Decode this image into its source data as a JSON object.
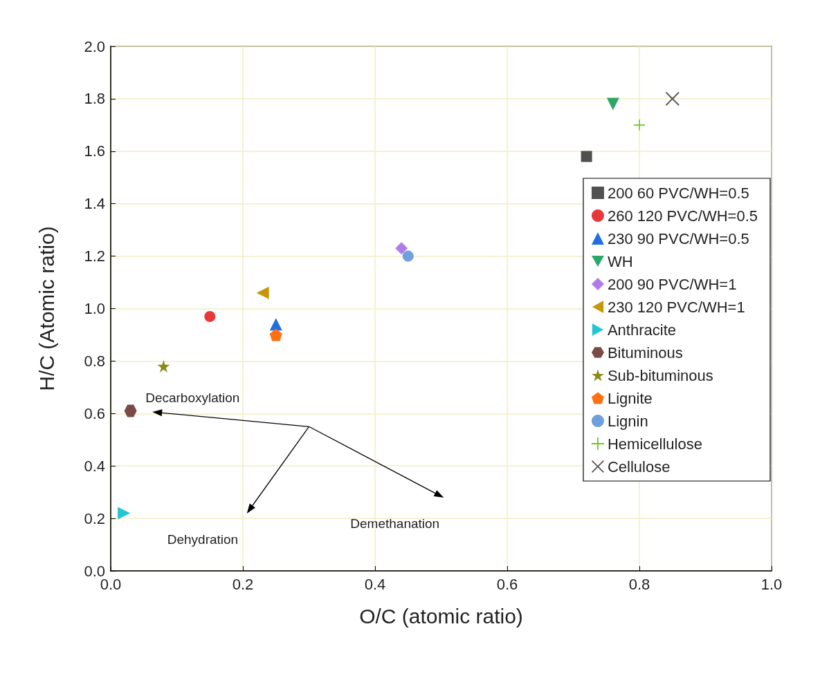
{
  "chart_data": {
    "type": "scatter",
    "xlabel": "O/C (atomic ratio)",
    "ylabel": "H/C (Atomic ratio)",
    "xlim": [
      0,
      1.0
    ],
    "xticks": [
      {
        "value": 0,
        "label": "0.0"
      },
      0.2,
      0.4,
      0.6,
      0.8,
      {
        "value": 1,
        "label": "1.0"
      }
    ],
    "ylim": [
      0,
      2.0
    ],
    "yticks": [
      {
        "value": 0,
        "label": "0.0"
      },
      0.2,
      0.4,
      0.6,
      0.8,
      {
        "value": 1,
        "label": "1.0"
      },
      1.2,
      1.4,
      1.6,
      1.8,
      {
        "value": 2,
        "label": "2.0"
      }
    ],
    "grid": true,
    "legend": "right",
    "series": [
      {
        "name": "200 60 PVC/WH=0.5",
        "color": "#505050",
        "marker": "square",
        "x": [
          0.72
        ],
        "values": [
          1.58
        ]
      },
      {
        "name": "260 120 PVC/WH=0.5",
        "color": "#e8393a",
        "marker": "circle",
        "x": [
          0.15
        ],
        "values": [
          0.97
        ]
      },
      {
        "name": "230 90 PVC/WH=0.5",
        "color": "#1f6fe0",
        "marker": "triangle",
        "x": [
          0.25
        ],
        "values": [
          0.94
        ]
      },
      {
        "name": "WH",
        "color": "#2aa866",
        "marker": "triangle-down",
        "x": [
          0.76
        ],
        "values": [
          1.78
        ]
      },
      {
        "name": "200 90 PVC/WH=1",
        "color": "#b07de8",
        "marker": "diamond",
        "x": [
          0.44
        ],
        "values": [
          1.23
        ]
      },
      {
        "name": "230 120 PVC/WH=1",
        "color": "#c9960a",
        "marker": "triangle-left",
        "x": [
          0.23
        ],
        "values": [
          1.06
        ]
      },
      {
        "name": "Anthracite",
        "color": "#21c5d6",
        "marker": "triangle-right",
        "x": [
          0.02
        ],
        "values": [
          0.22
        ]
      },
      {
        "name": "Bituminous",
        "color": "#7a4a46",
        "x": [
          0.03
        ],
        "values": [
          0.61
        ]
      },
      {
        "name": "Sub-bituminous",
        "color": "#8a8a18",
        "marker": "star",
        "x": [
          0.08
        ],
        "values": [
          0.78
        ]
      },
      {
        "name": "Lignite",
        "color": "#ff7010",
        "x": [
          0.25
        ],
        "values": [
          0.9
        ]
      },
      {
        "name": "Lignin",
        "color": "#6f9fdc",
        "marker": "circle",
        "x": [
          0.45
        ],
        "values": [
          1.2
        ]
      },
      {
        "name": "Hemicellulose",
        "color": "#66cc22",
        "marker": "plus",
        "x": [
          0.8
        ],
        "values": [
          1.7
        ]
      },
      {
        "name": "Cellulose",
        "color": "#555555",
        "marker": "cross",
        "x": [
          0.85
        ],
        "values": [
          1.8
        ]
      }
    ],
    "annotations": [
      "Decarboxylation",
      "Dehydration",
      "Demethanation"
    ]
  }
}
